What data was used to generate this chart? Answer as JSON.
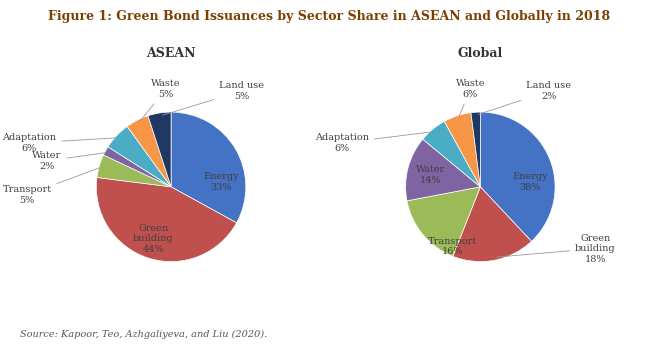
{
  "title": "Figure 1: Green Bond Issuances by Sector Share in ASEAN and Globally in 2018",
  "title_color": "#7B3F00",
  "source_text": "Source: Kapoor, Teo, Azhgaliyeva, and Liu (2020).",
  "asean_title": "ASEAN",
  "global_title": "Global",
  "asean_values": [
    33,
    44,
    5,
    2,
    6,
    5,
    5
  ],
  "asean_colors": [
    "#4472C4",
    "#C0504D",
    "#9BBB59",
    "#8064A2",
    "#4BACC6",
    "#F79646",
    "#1F3864"
  ],
  "global_values": [
    38,
    18,
    16,
    14,
    6,
    6,
    2
  ],
  "global_colors": [
    "#4472C4",
    "#C0504D",
    "#9BBB59",
    "#8064A2",
    "#4BACC6",
    "#F79646",
    "#1F3864"
  ],
  "background_color": "#FFFFFF",
  "label_color": "#404040",
  "figsize": [
    6.58,
    3.46
  ],
  "dpi": 100
}
